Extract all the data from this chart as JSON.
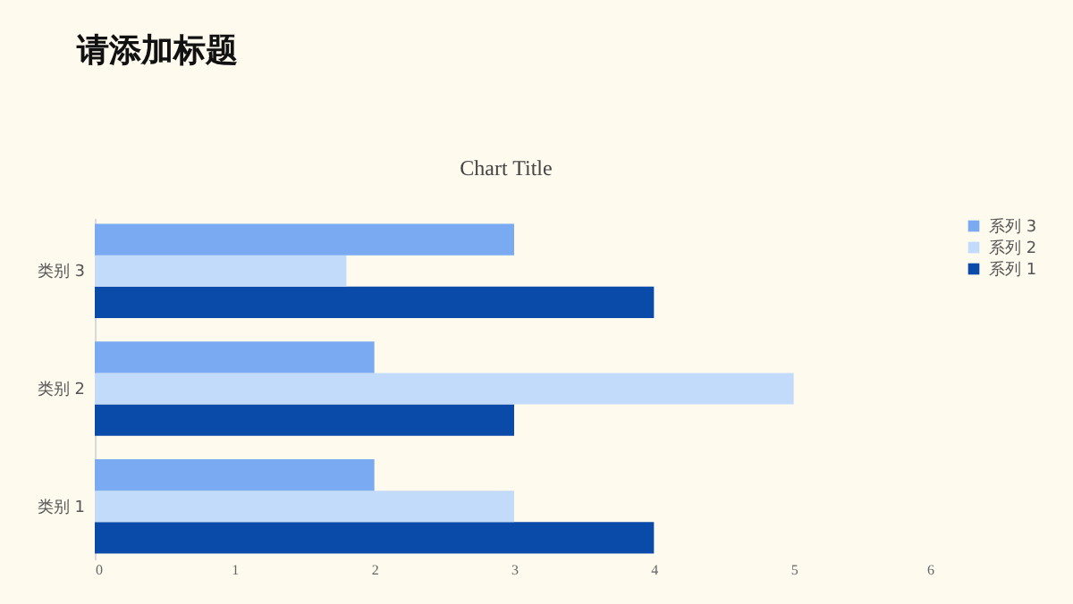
{
  "chart_data": {
    "type": "bar",
    "title": "请添加标题",
    "subtitle": "Chart Title",
    "orientation": "horizontal",
    "categories": [
      "类别 3",
      "类别 2",
      "类别 1"
    ],
    "series": [
      {
        "name": "系列 1",
        "color": "#0a4aa8",
        "values": [
          4,
          3,
          4
        ]
      },
      {
        "name": "系列 2",
        "color": "#c3dbfa",
        "values": [
          1.8,
          5,
          3
        ]
      },
      {
        "name": "系列 3",
        "color": "#79aaf2",
        "values": [
          3,
          2,
          2
        ]
      }
    ],
    "xlim": [
      0,
      6
    ],
    "xticks": [
      0,
      1,
      2,
      3,
      4,
      5,
      6
    ],
    "legend": "right"
  }
}
